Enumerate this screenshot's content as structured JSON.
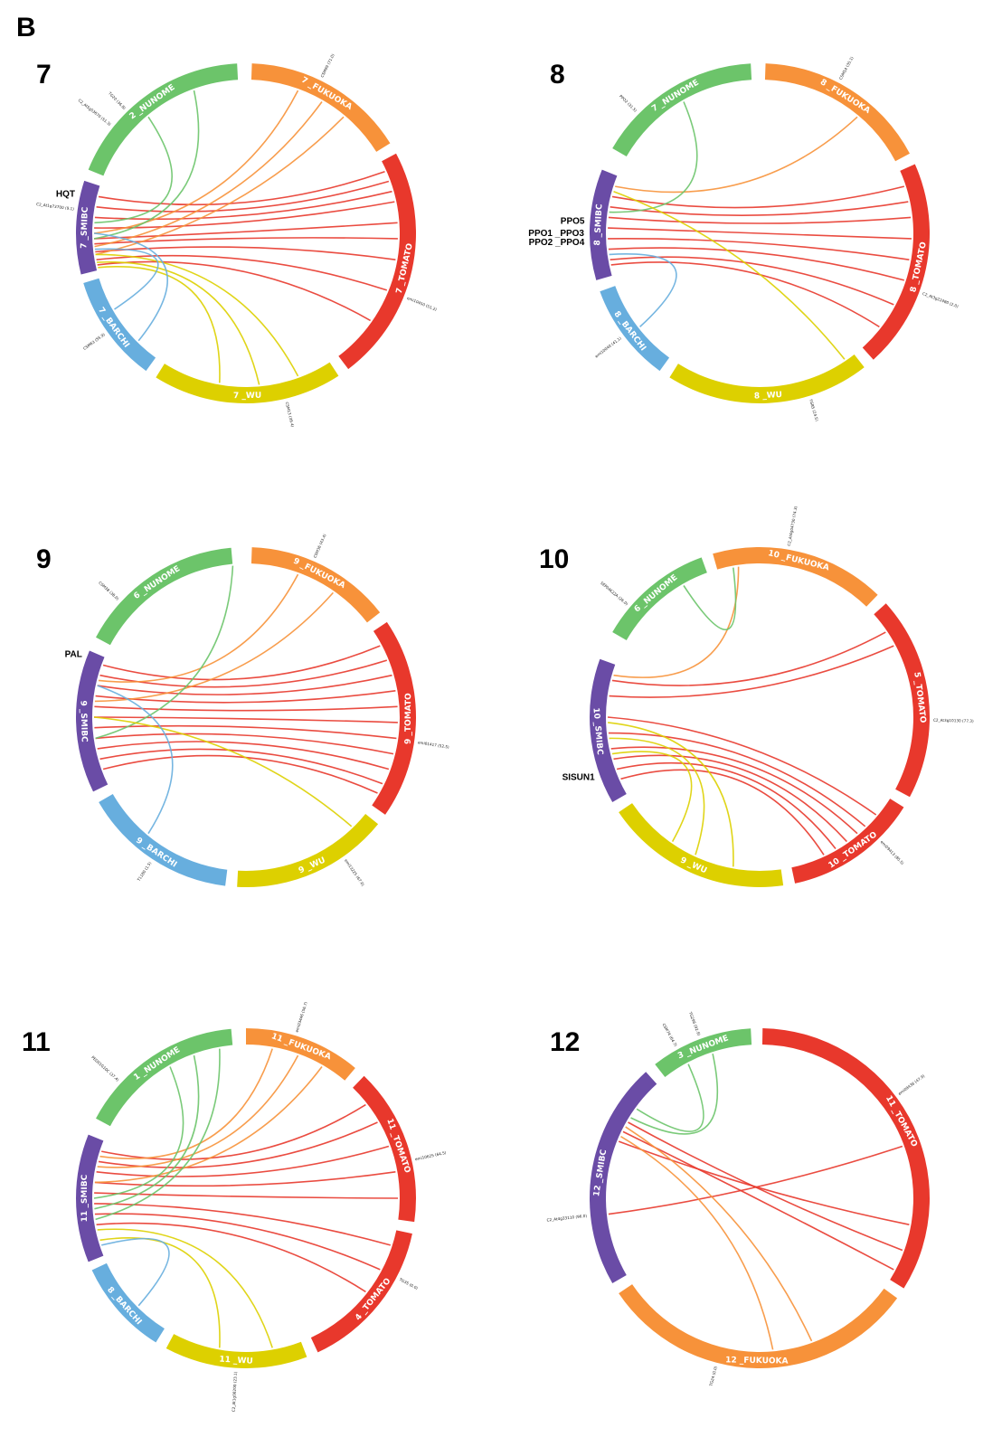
{
  "figure": {
    "letter": "B"
  },
  "colors": {
    "NUNOME": "#6cc46a",
    "FUKUOKA": "#f7923a",
    "TOMATO": "#e8382c",
    "WU": "#ddd000",
    "BARCHI": "#67aede",
    "SMIBC": "#6a4ca6"
  },
  "panels": [
    {
      "number": "7",
      "segments": [
        {
          "label": "2 _NUNOME",
          "map": "NUNOME",
          "start": -68,
          "end": -3
        },
        {
          "label": "7 _FUKUOKA",
          "map": "FUKUOKA",
          "start": 2,
          "end": 58
        },
        {
          "label": "7 _TOMATO",
          "map": "TOMATO",
          "start": 62,
          "end": 143
        },
        {
          "label": "7 _WU",
          "map": "WU",
          "start": 147,
          "end": 212
        },
        {
          "label": "7 _BARCHI",
          "map": "BARCHI",
          "start": 216,
          "end": 253
        },
        {
          "label": "7 _SMIBC",
          "map": "SMIBC",
          "start": 256,
          "end": 288
        }
      ],
      "links": [
        {
          "from": 280,
          "to": 70,
          "map": "TOMATO"
        },
        {
          "from": 276,
          "to": 74,
          "map": "TOMATO"
        },
        {
          "from": 272,
          "to": 78,
          "map": "TOMATO"
        },
        {
          "from": 268,
          "to": 86,
          "map": "TOMATO"
        },
        {
          "from": 266,
          "to": 92,
          "map": "TOMATO"
        },
        {
          "from": 263,
          "to": 100,
          "map": "TOMATO"
        },
        {
          "from": 260,
          "to": 112,
          "map": "TOMATO"
        },
        {
          "from": 258,
          "to": 125,
          "map": "TOMATO"
        },
        {
          "from": 284,
          "to": 66,
          "map": "TOMATO"
        },
        {
          "from": 270,
          "to": 20,
          "map": "FUKUOKA"
        },
        {
          "from": 265,
          "to": 30,
          "map": "FUKUOKA"
        },
        {
          "from": 262,
          "to": 40,
          "map": "FUKUOKA"
        },
        {
          "from": 274,
          "to": -40,
          "map": "NUNOME"
        },
        {
          "from": 268,
          "to": -20,
          "map": "NUNOME"
        },
        {
          "from": 262,
          "to": 160,
          "map": "WU"
        },
        {
          "from": 259,
          "to": 175,
          "map": "WU"
        },
        {
          "from": 257,
          "to": 190,
          "map": "WU"
        },
        {
          "from": 270,
          "to": 225,
          "map": "BARCHI"
        },
        {
          "from": 264,
          "to": 240,
          "map": "BARCHI"
        }
      ],
      "markers": [
        "C2_At5g53670 (51.3)",
        "CSM99 (71.0)",
        "emi10450 (51.2)",
        "CSM13 (39.4)",
        "CSM63 (55.9)",
        "C2_At1g73700 (9.1)",
        "TG20 (36.8)"
      ],
      "highlights": [
        {
          "text": "HQT",
          "angle": 283
        }
      ]
    },
    {
      "number": "8",
      "segments": [
        {
          "label": "7 _NUNOME",
          "map": "NUNOME",
          "start": -60,
          "end": -3
        },
        {
          "label": "8 _FUKUOKA",
          "map": "FUKUOKA",
          "start": 2,
          "end": 62
        },
        {
          "label": "8 _TOMATO",
          "map": "TOMATO",
          "start": 66,
          "end": 138
        },
        {
          "label": "8 _WU",
          "map": "WU",
          "start": 142,
          "end": 212
        },
        {
          "label": "8 _BARCHI",
          "map": "BARCHI",
          "start": 216,
          "end": 250
        },
        {
          "label": "8 _SMIBC",
          "map": "SMIBC",
          "start": 254,
          "end": 292
        }
      ],
      "links": [
        {
          "from": 284,
          "to": 72,
          "map": "TOMATO"
        },
        {
          "from": 280,
          "to": 78,
          "map": "TOMATO"
        },
        {
          "from": 276,
          "to": 84,
          "map": "TOMATO"
        },
        {
          "from": 272,
          "to": 92,
          "map": "TOMATO"
        },
        {
          "from": 268,
          "to": 100,
          "map": "TOMATO"
        },
        {
          "from": 264,
          "to": 108,
          "map": "TOMATO"
        },
        {
          "from": 260,
          "to": 118,
          "map": "TOMATO"
        },
        {
          "from": 258,
          "to": 128,
          "map": "TOMATO"
        },
        {
          "from": 288,
          "to": 40,
          "map": "FUKUOKA"
        },
        {
          "from": 278,
          "to": -30,
          "map": "NUNOME"
        },
        {
          "from": 286,
          "to": 146,
          "map": "WU"
        },
        {
          "from": 262,
          "to": 232,
          "map": "BARCHI"
        }
      ],
      "markers": [
        "PPO2 (31.5)",
        "CSM54 (35.1)",
        "C2_At3g22480 (2.0)",
        "TG85 (24.5)",
        "emi10040 (41.1)"
      ],
      "highlights": [
        {
          "text": "PPO5",
          "angle": 274
        },
        {
          "text": "PPO1 _PPO3",
          "angle": 270
        },
        {
          "text": "PPO2 _PPO4",
          "angle": 267
        }
      ]
    },
    {
      "number": "9",
      "segments": [
        {
          "label": "6 _NUNOME",
          "map": "NUNOME",
          "start": -62,
          "end": -5
        },
        {
          "label": "9 _FUKUOKA",
          "map": "FUKUOKA",
          "start": 2,
          "end": 52
        },
        {
          "label": "9 _TOMATO",
          "map": "TOMATO",
          "start": 56,
          "end": 125
        },
        {
          "label": "9 _WU",
          "map": "WU",
          "start": 129,
          "end": 183
        },
        {
          "label": "9 _BARCHI",
          "map": "BARCHI",
          "start": 187,
          "end": 240
        },
        {
          "label": "9 _SMIBC",
          "map": "SMIBC",
          "start": 244,
          "end": 293
        }
      ],
      "links": [
        {
          "from": 290,
          "to": 62,
          "map": "TOMATO"
        },
        {
          "from": 286,
          "to": 68,
          "map": "TOMATO"
        },
        {
          "from": 282,
          "to": 74,
          "map": "TOMATO"
        },
        {
          "from": 278,
          "to": 80,
          "map": "TOMATO"
        },
        {
          "from": 274,
          "to": 86,
          "map": "TOMATO"
        },
        {
          "from": 270,
          "to": 92,
          "map": "TOMATO"
        },
        {
          "from": 266,
          "to": 98,
          "map": "TOMATO"
        },
        {
          "from": 262,
          "to": 104,
          "map": "TOMATO"
        },
        {
          "from": 258,
          "to": 110,
          "map": "TOMATO"
        },
        {
          "from": 254,
          "to": 116,
          "map": "TOMATO"
        },
        {
          "from": 250,
          "to": 120,
          "map": "TOMATO"
        },
        {
          "from": 284,
          "to": 20,
          "map": "FUKUOKA"
        },
        {
          "from": 276,
          "to": 35,
          "map": "FUKUOKA"
        },
        {
          "from": 262,
          "to": -5,
          "map": "NUNOME"
        },
        {
          "from": 270,
          "to": 136,
          "map": "WU"
        },
        {
          "from": 282,
          "to": 220,
          "map": "BARCHI"
        }
      ],
      "markers": [
        "CSM38 (38.0)",
        "CSM36 (43.4)",
        "emi01417 (52.5)",
        "emi13225 (67.0)",
        "T1180 (1.5)"
      ],
      "highlights": [
        {
          "text": "PAL",
          "angle": 291
        }
      ]
    },
    {
      "number": "10",
      "segments": [
        {
          "label": "6 _NUNOME",
          "map": "NUNOME",
          "start": -60,
          "end": -20
        },
        {
          "label": "10 _FUKUOKA",
          "map": "FUKUOKA",
          "start": -16,
          "end": 44
        },
        {
          "label": "5 _TOMATO",
          "map": "TOMATO",
          "start": 48,
          "end": 118
        },
        {
          "label": "10 _TOMATO",
          "map": "TOMATO",
          "start": 122,
          "end": 168
        },
        {
          "label": "9 _WU",
          "map": "WU",
          "start": 172,
          "end": 236
        },
        {
          "label": "10 _SMIBC",
          "map": "SMIBC",
          "start": 240,
          "end": 290
        }
      ],
      "links": [
        {
          "from": 284,
          "to": 56,
          "map": "TOMATO"
        },
        {
          "from": 278,
          "to": 62,
          "map": "TOMATO"
        },
        {
          "from": 270,
          "to": 130,
          "map": "TOMATO"
        },
        {
          "from": 264,
          "to": 136,
          "map": "TOMATO"
        },
        {
          "from": 258,
          "to": 140,
          "map": "TOMATO"
        },
        {
          "from": 254,
          "to": 145,
          "map": "TOMATO"
        },
        {
          "from": 250,
          "to": 150,
          "map": "TOMATO"
        },
        {
          "from": 246,
          "to": 155,
          "map": "TOMATO"
        },
        {
          "from": 268,
          "to": 190,
          "map": "WU"
        },
        {
          "from": 262,
          "to": 205,
          "map": "WU"
        },
        {
          "from": 256,
          "to": 215,
          "map": "WU"
        },
        {
          "from": 286,
          "to": -8,
          "map": "FUKUOKA"
        },
        {
          "from": -30,
          "to": -10,
          "map": "NUNOME"
        }
      ],
      "markers": [
        "SEP04K22A (26.0)",
        "C2_At4g04730 (74.3)",
        "C2_At3g10130 (77.3)",
        "emi09413 (85.5)"
      ],
      "highlights": [
        {
          "text": "SISUN1",
          "angle": 250
        }
      ]
    },
    {
      "number": "11",
      "segments": [
        {
          "label": "1 _NUNOME",
          "map": "NUNOME",
          "start": -62,
          "end": -5
        },
        {
          "label": "11 _FUKUOKA",
          "map": "FUKUOKA",
          "start": 0,
          "end": 40
        },
        {
          "label": "11 _TOMATO",
          "map": "TOMATO",
          "start": 44,
          "end": 98
        },
        {
          "label": "4 _TOMATO",
          "map": "TOMATO",
          "start": 102,
          "end": 155
        },
        {
          "label": "11 _WU",
          "map": "WU",
          "start": 159,
          "end": 208
        },
        {
          "label": "8 _BARCHI",
          "map": "BARCHI",
          "start": 212,
          "end": 245
        },
        {
          "label": "11 _SMIBC",
          "map": "SMIBC",
          "start": 248,
          "end": 292
        }
      ],
      "links": [
        {
          "from": 288,
          "to": 52,
          "map": "TOMATO"
        },
        {
          "from": 284,
          "to": 60,
          "map": "TOMATO"
        },
        {
          "from": 280,
          "to": 70,
          "map": "TOMATO"
        },
        {
          "from": 276,
          "to": 80,
          "map": "TOMATO"
        },
        {
          "from": 272,
          "to": 90,
          "map": "TOMATO"
        },
        {
          "from": 268,
          "to": 108,
          "map": "TOMATO"
        },
        {
          "from": 264,
          "to": 118,
          "map": "TOMATO"
        },
        {
          "from": 260,
          "to": 128,
          "map": "TOMATO"
        },
        {
          "from": 286,
          "to": 10,
          "map": "FUKUOKA"
        },
        {
          "from": 282,
          "to": 20,
          "map": "FUKUOKA"
        },
        {
          "from": 276,
          "to": 30,
          "map": "FUKUOKA"
        },
        {
          "from": 270,
          "to": -30,
          "map": "NUNOME"
        },
        {
          "from": 266,
          "to": -20,
          "map": "NUNOME"
        },
        {
          "from": 262,
          "to": -10,
          "map": "NUNOME"
        },
        {
          "from": 258,
          "to": 170,
          "map": "WU"
        },
        {
          "from": 254,
          "to": 190,
          "map": "WU"
        },
        {
          "from": 252,
          "to": 225,
          "map": "BARCHI"
        }
      ],
      "markers": [
        "PED01G10C (37.4)",
        "emi03446 (56.7)",
        "emi10625 (64.5)",
        "TG35 (0.0)",
        "C2_At1g08200 (23.1)"
      ],
      "highlights": []
    },
    {
      "number": "12",
      "segments": [
        {
          "label": "3 _NUNOME",
          "map": "NUNOME",
          "start": -38,
          "end": -3
        },
        {
          "label": "11 _TOMATO",
          "map": "TOMATO",
          "start": 1,
          "end": 122
        },
        {
          "label": "12 _FUKUOKA",
          "map": "FUKUOKA",
          "start": 126,
          "end": 236
        },
        {
          "label": "12 _SMIBC",
          "map": "SMIBC",
          "start": 240,
          "end": 318
        }
      ],
      "links": [
        {
          "from": 300,
          "to": 110,
          "map": "TOMATO"
        },
        {
          "from": 296,
          "to": 118,
          "map": "TOMATO"
        },
        {
          "from": 292,
          "to": 100,
          "map": "TOMATO"
        },
        {
          "from": 264,
          "to": 70,
          "map": "TOMATO"
        },
        {
          "from": 306,
          "to": -28,
          "map": "NUNOME"
        },
        {
          "from": 302,
          "to": -18,
          "map": "NUNOME"
        },
        {
          "from": 298,
          "to": 160,
          "map": "FUKUOKA"
        },
        {
          "from": 294,
          "to": 175,
          "map": "FUKUOKA"
        }
      ],
      "markers": [
        "CSM74 (64.7)",
        "emi09436 (47.9)",
        "TG24 (0.0)",
        "C2_At4g33110 (96.0)",
        "TG296 (92.9)"
      ],
      "highlights": []
    }
  ]
}
